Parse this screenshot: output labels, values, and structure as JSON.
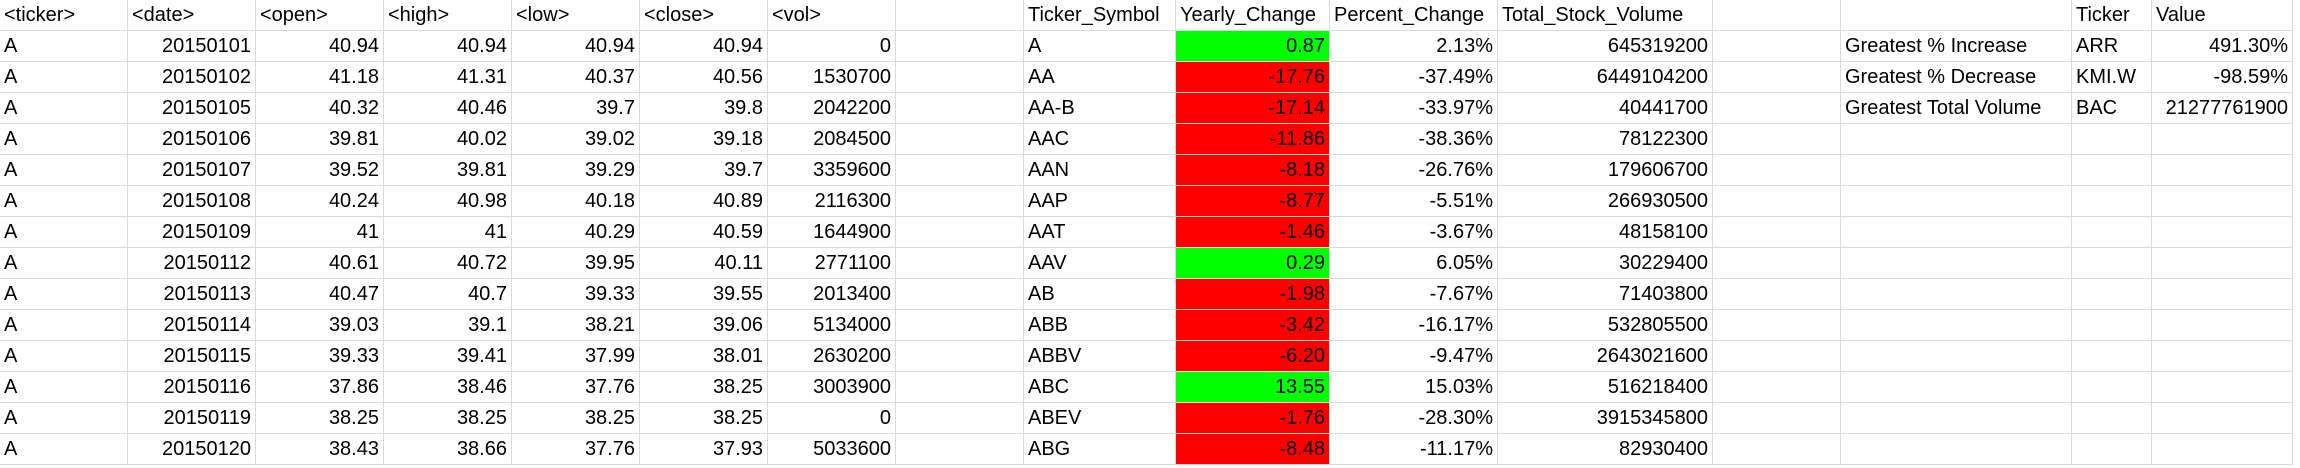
{
  "colors": {
    "positive_fill": "#00ff00",
    "negative_fill": "#ff0000",
    "gridline": "#d9d9d9"
  },
  "headers": {
    "ticker": "<ticker>",
    "date": "<date>",
    "open": "<open>",
    "high": "<high>",
    "low": "<low>",
    "close": "<close>",
    "vol": "<vol>",
    "ticker_symbol": "Ticker_Symbol",
    "yearly_change": "Yearly_Change",
    "percent_change": "Percent_Change",
    "total_stock_volume": "Total_Stock_Volume",
    "summary_ticker": "Ticker",
    "summary_value": "Value"
  },
  "raw_rows": [
    [
      "A",
      "20150101",
      "40.94",
      "40.94",
      "40.94",
      "40.94",
      "0"
    ],
    [
      "A",
      "20150102",
      "41.18",
      "41.31",
      "40.37",
      "40.56",
      "1530700"
    ],
    [
      "A",
      "20150105",
      "40.32",
      "40.46",
      "39.7",
      "39.8",
      "2042200"
    ],
    [
      "A",
      "20150106",
      "39.81",
      "40.02",
      "39.02",
      "39.18",
      "2084500"
    ],
    [
      "A",
      "20150107",
      "39.52",
      "39.81",
      "39.29",
      "39.7",
      "3359600"
    ],
    [
      "A",
      "20150108",
      "40.24",
      "40.98",
      "40.18",
      "40.89",
      "2116300"
    ],
    [
      "A",
      "20150109",
      "41",
      "41",
      "40.29",
      "40.59",
      "1644900"
    ],
    [
      "A",
      "20150112",
      "40.61",
      "40.72",
      "39.95",
      "40.11",
      "2771100"
    ],
    [
      "A",
      "20150113",
      "40.47",
      "40.7",
      "39.33",
      "39.55",
      "2013400"
    ],
    [
      "A",
      "20150114",
      "39.03",
      "39.1",
      "38.21",
      "39.06",
      "5134000"
    ],
    [
      "A",
      "20150115",
      "39.33",
      "39.41",
      "37.99",
      "38.01",
      "2630200"
    ],
    [
      "A",
      "20150116",
      "37.86",
      "38.46",
      "37.76",
      "38.25",
      "3003900"
    ],
    [
      "A",
      "20150119",
      "38.25",
      "38.25",
      "38.25",
      "38.25",
      "0"
    ],
    [
      "A",
      "20150120",
      "38.43",
      "38.66",
      "37.76",
      "37.93",
      "5033600"
    ]
  ],
  "summary_rows": [
    {
      "symbol": "A",
      "yearly_change": "0.87",
      "sign": "pos",
      "percent_change": "2.13%",
      "volume": "645319200"
    },
    {
      "symbol": "AA",
      "yearly_change": "-17.76",
      "sign": "neg",
      "percent_change": "-37.49%",
      "volume": "6449104200"
    },
    {
      "symbol": "AA-B",
      "yearly_change": "-17.14",
      "sign": "neg",
      "percent_change": "-33.97%",
      "volume": "40441700"
    },
    {
      "symbol": "AAC",
      "yearly_change": "-11.86",
      "sign": "neg",
      "percent_change": "-38.36%",
      "volume": "78122300"
    },
    {
      "symbol": "AAN",
      "yearly_change": "-8.18",
      "sign": "neg",
      "percent_change": "-26.76%",
      "volume": "179606700"
    },
    {
      "symbol": "AAP",
      "yearly_change": "-8.77",
      "sign": "neg",
      "percent_change": "-5.51%",
      "volume": "266930500"
    },
    {
      "symbol": "AAT",
      "yearly_change": "-1.46",
      "sign": "neg",
      "percent_change": "-3.67%",
      "volume": "48158100"
    },
    {
      "symbol": "AAV",
      "yearly_change": "0.29",
      "sign": "pos",
      "percent_change": "6.05%",
      "volume": "30229400"
    },
    {
      "symbol": "AB",
      "yearly_change": "-1.98",
      "sign": "neg",
      "percent_change": "-7.67%",
      "volume": "71403800"
    },
    {
      "symbol": "ABB",
      "yearly_change": "-3.42",
      "sign": "neg",
      "percent_change": "-16.17%",
      "volume": "532805500"
    },
    {
      "symbol": "ABBV",
      "yearly_change": "-6.20",
      "sign": "neg",
      "percent_change": "-9.47%",
      "volume": "2643021600"
    },
    {
      "symbol": "ABC",
      "yearly_change": "13.55",
      "sign": "pos",
      "percent_change": "15.03%",
      "volume": "516218400"
    },
    {
      "symbol": "ABEV",
      "yearly_change": "-1.76",
      "sign": "neg",
      "percent_change": "-28.30%",
      "volume": "3915345800"
    },
    {
      "symbol": "ABG",
      "yearly_change": "-8.48",
      "sign": "neg",
      "percent_change": "-11.17%",
      "volume": "82930400"
    }
  ],
  "greatest": [
    {
      "label": "Greatest % Increase",
      "ticker": "ARR",
      "value": "491.30%"
    },
    {
      "label": "Greatest % Decrease",
      "ticker": "KMI.W",
      "value": "-98.59%"
    },
    {
      "label": "Greatest Total Volume",
      "ticker": "BAC",
      "value": "21277761900"
    }
  ]
}
